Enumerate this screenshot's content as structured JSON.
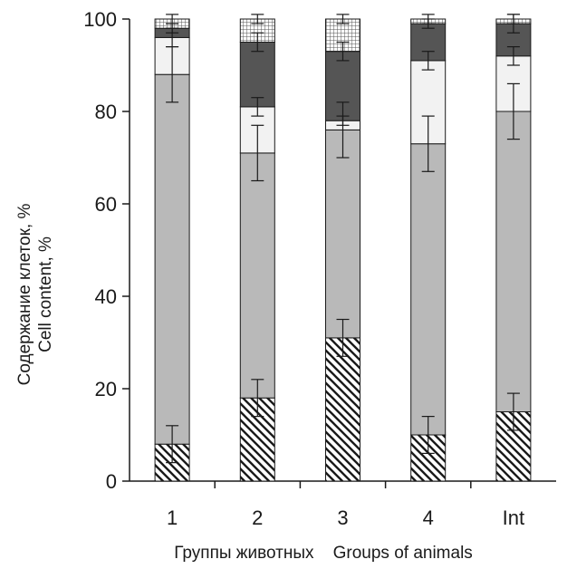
{
  "chart_data": {
    "type": "bar",
    "stacked": true,
    "categories": [
      "1",
      "2",
      "3",
      "4",
      "Int"
    ],
    "ylabel_lines": [
      "Содержание клеток, %",
      "Cell content, %"
    ],
    "xlabel": "Группы животных    Groups of animals",
    "ylim": [
      0,
      100
    ],
    "yticks": [
      0,
      20,
      40,
      60,
      80,
      100
    ],
    "series": [
      {
        "pattern": "diagonal-hatch",
        "color": "#ffffff",
        "values": [
          8,
          18,
          31,
          10,
          15
        ],
        "errors": [
          4,
          4,
          4,
          4,
          4
        ]
      },
      {
        "pattern": "solid",
        "color": "#b9b9b9",
        "values": [
          80,
          53,
          45,
          63,
          65
        ],
        "errors": [
          6,
          6,
          6,
          6,
          6
        ]
      },
      {
        "pattern": "solid",
        "color": "#f2f2f2",
        "values": [
          8,
          10,
          2,
          18,
          12
        ],
        "errors": [
          2,
          2,
          1,
          2,
          2
        ]
      },
      {
        "pattern": "solid",
        "color": "#555555",
        "values": [
          2,
          14,
          15,
          8,
          7
        ],
        "errors": [
          1,
          2,
          2,
          1,
          2
        ]
      },
      {
        "pattern": "crosshatch",
        "color": "#ffffff",
        "values": [
          2,
          5,
          7,
          1,
          1
        ],
        "errors": [
          1,
          1,
          1,
          1,
          1
        ]
      }
    ]
  }
}
